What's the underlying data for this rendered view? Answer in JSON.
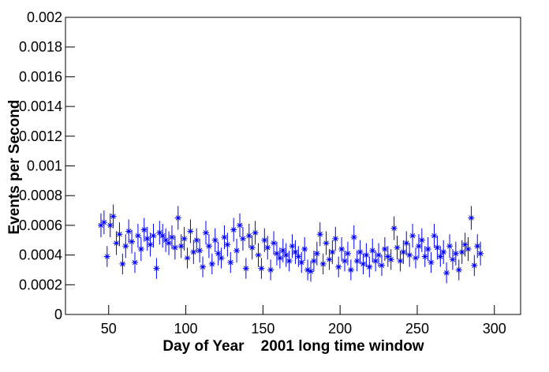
{
  "chart_data": {
    "type": "scatter",
    "xlabel": "Day of Year    2001 long time window",
    "ylabel": "Events per Second",
    "color": "#0000ff",
    "xlim": [
      22,
      317
    ],
    "ylim": [
      0,
      0.002
    ],
    "xticks": [
      50,
      100,
      150,
      200,
      250,
      300
    ],
    "yticks": [
      0,
      0.0002,
      0.0004,
      0.0006,
      0.0008,
      0.001,
      0.0012,
      0.0014,
      0.0016,
      0.0018,
      0.002
    ],
    "x": [
      45,
      47,
      49,
      51,
      53,
      55,
      57,
      59,
      61,
      63,
      65,
      67,
      69,
      71,
      73,
      75,
      77,
      79,
      81,
      83,
      85,
      87,
      89,
      91,
      93,
      95,
      97,
      99,
      101,
      103,
      105,
      107,
      109,
      111,
      113,
      115,
      117,
      119,
      121,
      123,
      125,
      127,
      129,
      131,
      133,
      135,
      137,
      139,
      141,
      143,
      145,
      147,
      149,
      151,
      153,
      155,
      157,
      159,
      161,
      163,
      165,
      167,
      169,
      171,
      173,
      175,
      177,
      179,
      181,
      183,
      185,
      187,
      189,
      191,
      193,
      195,
      197,
      199,
      201,
      203,
      205,
      207,
      209,
      211,
      213,
      215,
      217,
      219,
      221,
      223,
      225,
      227,
      229,
      231,
      233,
      235,
      237,
      239,
      241,
      243,
      245,
      247,
      249,
      251,
      253,
      255,
      257,
      259,
      261,
      263,
      265,
      267,
      269,
      271,
      273,
      275,
      277,
      279,
      281,
      283,
      285,
      287,
      289,
      291
    ],
    "values": [
      0.0006,
      0.00062,
      0.00039,
      0.0006,
      0.00066,
      0.00048,
      0.00054,
      0.00034,
      0.00046,
      0.00056,
      0.00049,
      0.00035,
      0.00053,
      0.00044,
      0.00057,
      0.00051,
      0.00047,
      0.00053,
      0.00031,
      0.00055,
      0.00053,
      0.0005,
      0.00048,
      0.00052,
      0.00045,
      0.00065,
      0.00046,
      0.00051,
      0.00038,
      0.00056,
      0.00042,
      0.0005,
      0.00043,
      0.00032,
      0.00055,
      0.00046,
      0.00034,
      0.0005,
      0.00041,
      0.00038,
      0.00052,
      0.00047,
      0.00035,
      0.00057,
      0.00043,
      0.0006,
      0.00051,
      0.00031,
      0.00053,
      0.00045,
      0.00055,
      0.0004,
      0.00031,
      0.0005,
      0.00045,
      0.0003,
      0.00048,
      0.00041,
      0.00038,
      0.00043,
      0.0004,
      0.00036,
      0.00046,
      0.00042,
      0.00039,
      0.00035,
      0.00044,
      0.0003,
      0.00029,
      0.00036,
      0.00041,
      0.00054,
      0.00034,
      0.00048,
      0.00037,
      0.00042,
      0.00051,
      0.00032,
      0.00044,
      0.00036,
      0.00041,
      0.0003,
      0.00052,
      0.00036,
      0.00042,
      0.00034,
      0.0004,
      0.00032,
      0.00043,
      0.00036,
      0.0004,
      0.00033,
      0.00044,
      0.00039,
      0.00037,
      0.00058,
      0.00045,
      0.00036,
      0.00042,
      0.00048,
      0.0004,
      0.00053,
      0.00038,
      0.00046,
      0.0005,
      0.00039,
      0.00044,
      0.00035,
      0.00053,
      0.00045,
      0.00039,
      0.00042,
      0.00028,
      0.00046,
      0.00037,
      0.00041,
      0.0003,
      0.00042,
      0.00047,
      0.00044,
      0.00065,
      0.00033,
      0.00046,
      0.00041
    ],
    "errors": [
      8e-05,
      8e-05,
      7e-05,
      8e-05,
      8e-05,
      8e-05,
      8e-05,
      7e-05,
      8e-05,
      8e-05,
      8e-05,
      7e-05,
      8e-05,
      8e-05,
      8e-05,
      8e-05,
      8e-05,
      8e-05,
      7e-05,
      8e-05,
      8e-05,
      8e-05,
      8e-05,
      8e-05,
      8e-05,
      8e-05,
      8e-05,
      8e-05,
      7e-05,
      8e-05,
      8e-05,
      8e-05,
      8e-05,
      7e-05,
      8e-05,
      8e-05,
      7e-05,
      8e-05,
      8e-05,
      7e-05,
      8e-05,
      8e-05,
      7e-05,
      8e-05,
      8e-05,
      8e-05,
      8e-05,
      7e-05,
      8e-05,
      8e-05,
      8e-05,
      8e-05,
      7e-05,
      8e-05,
      8e-05,
      7e-05,
      8e-05,
      8e-05,
      7e-05,
      8e-05,
      8e-05,
      7e-05,
      8e-05,
      8e-05,
      7e-05,
      7e-05,
      8e-05,
      7e-05,
      7e-05,
      7e-05,
      8e-05,
      8e-05,
      7e-05,
      8e-05,
      7e-05,
      8e-05,
      8e-05,
      7e-05,
      8e-05,
      7e-05,
      8e-05,
      7e-05,
      8e-05,
      7e-05,
      8e-05,
      7e-05,
      8e-05,
      7e-05,
      8e-05,
      7e-05,
      8e-05,
      7e-05,
      8e-05,
      7e-05,
      7e-05,
      8e-05,
      8e-05,
      7e-05,
      8e-05,
      8e-05,
      8e-05,
      8e-05,
      7e-05,
      8e-05,
      8e-05,
      7e-05,
      8e-05,
      7e-05,
      8e-05,
      8e-05,
      7e-05,
      8e-05,
      7e-05,
      8e-05,
      7e-05,
      8e-05,
      7e-05,
      8e-05,
      8e-05,
      8e-05,
      8e-05,
      7e-05,
      8e-05,
      8e-05
    ]
  }
}
